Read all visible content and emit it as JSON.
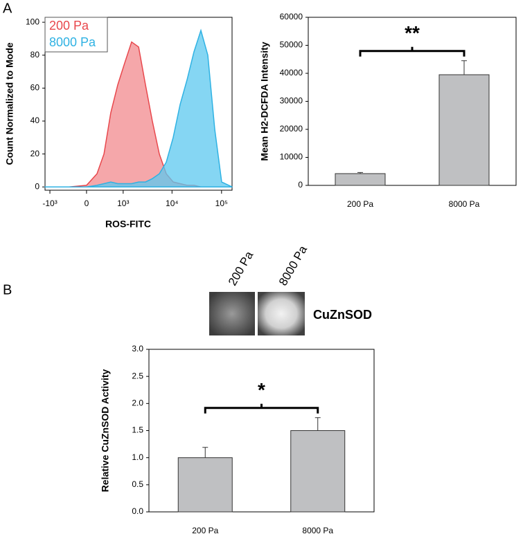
{
  "panel_labels": [
    "A",
    "B"
  ],
  "blot": {
    "lanes": [
      "200 Pa",
      "8000 Pa"
    ],
    "label": "CuZnSOD"
  },
  "chart_data": [
    {
      "type": "area",
      "xscale": "biexponential",
      "x_label": "ROS-FITC",
      "y_label": "Count Normalized to Mode",
      "x": [
        -1270,
        -340,
        0,
        190,
        340,
        520,
        760,
        1070,
        1510,
        2100,
        2900,
        4000,
        5550,
        7660,
        10560,
        14590,
        20100,
        27780,
        38340,
        52900,
        73000,
        100700,
        163000
      ],
      "series": [
        {
          "name": "200 Pa",
          "color": "#e8474c",
          "fill": "#f28a8e",
          "values": [
            0,
            0,
            1,
            8,
            20,
            45,
            62,
            75,
            88,
            85,
            62,
            40,
            20,
            8,
            3,
            2,
            1,
            1,
            0,
            0,
            0,
            0,
            0
          ]
        },
        {
          "name": "8000 Pa",
          "color": "#2fb2e3",
          "fill": "#5cc8ef",
          "values": [
            0,
            0,
            0,
            1,
            2,
            3,
            2,
            2,
            2,
            3,
            3,
            5,
            8,
            15,
            30,
            50,
            65,
            82,
            95,
            80,
            35,
            3,
            0
          ]
        }
      ],
      "xlim": [
        -1270,
        163000
      ],
      "xticks": [
        {
          "value": -1000,
          "label": "-10³"
        },
        0,
        {
          "value": 1000,
          "label": "10³"
        },
        {
          "value": 10000,
          "label": "10⁴"
        },
        {
          "value": 100000,
          "label": "10⁵"
        }
      ],
      "ylim": [
        -2,
        103
      ],
      "yticks": [
        0,
        20,
        40,
        60,
        80,
        100
      ]
    },
    {
      "type": "bar",
      "y_label": "Mean H2-DCFDA Intensity",
      "annotation": "**",
      "categories": [
        "200 Pa",
        "8000 Pa"
      ],
      "values": [
        4200,
        39500
      ],
      "errors": [
        400,
        5000
      ],
      "color": "#bfc0c2",
      "ylim": [
        0,
        60000
      ],
      "yticks": [
        0,
        10000,
        20000,
        30000,
        40000,
        50000,
        60000
      ]
    },
    {
      "type": "bar",
      "y_label": "Relative CuZnSOD Activity",
      "annotation": "*",
      "categories": [
        "200 Pa",
        "8000 Pa"
      ],
      "values": [
        1.0,
        1.5
      ],
      "errors": [
        0.19,
        0.24
      ],
      "color": "#bfc0c2",
      "ylim": [
        0,
        3
      ],
      "yticks": [
        {
          "value": 0,
          "label": "0.0"
        },
        {
          "value": 0.5,
          "label": "0.5"
        },
        {
          "value": 1,
          "label": "1.0"
        },
        {
          "value": 1.5,
          "label": "1.5"
        },
        {
          "value": 2,
          "label": "2.0"
        },
        {
          "value": 2.5,
          "label": "2.5"
        },
        {
          "value": 3,
          "label": "3.0"
        }
      ]
    }
  ]
}
